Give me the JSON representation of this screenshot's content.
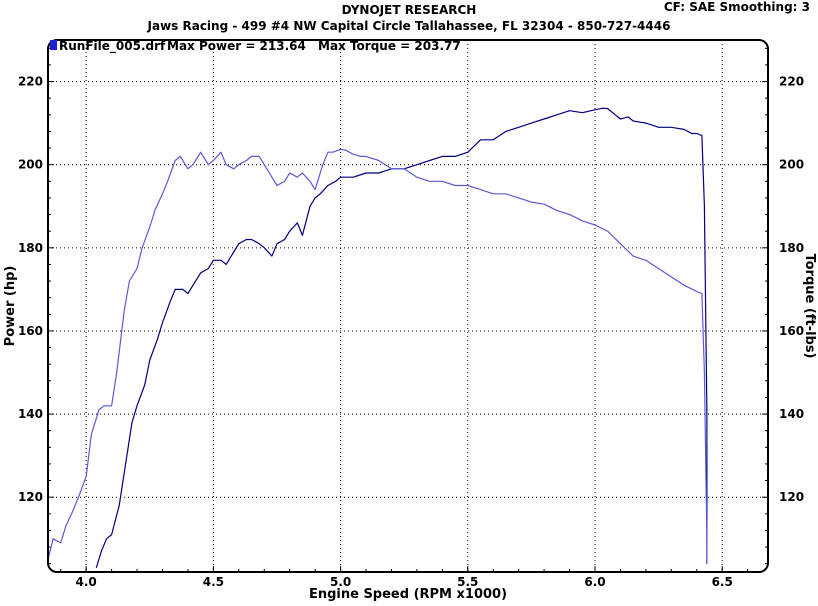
{
  "header": {
    "title": "DYNOJET RESEARCH",
    "subtitle": "Jaws Racing - 499 #4 NW Capital Circle Tallahassee, FL 32304 - 850-727-4446",
    "correction": "CF: SAE  Smoothing: 3"
  },
  "legend": {
    "run": "RunFile_005.drf",
    "max_power_label": "Max Power = 213.64",
    "max_torque_label": "Max Torque = 203.77"
  },
  "chart_data": {
    "type": "line",
    "title": "DYNOJET RESEARCH",
    "xlabel": "Engine Speed (RPM x1000)",
    "ylabel": "Power (hp)",
    "y2label": "Torque (ft-lbs)",
    "xlim": [
      3.85,
      6.68
    ],
    "ylim": [
      102,
      230
    ],
    "y2lim": [
      102,
      230
    ],
    "xticks": [
      4.0,
      4.5,
      5.0,
      5.5,
      6.0,
      6.5
    ],
    "xtick_labels": [
      "4.0",
      "4.5",
      "5.0",
      "5.5",
      "6.0",
      "6.5"
    ],
    "yticks": [
      120,
      140,
      160,
      180,
      200,
      220
    ],
    "y2ticks": [
      120,
      140,
      160,
      180,
      200,
      220
    ],
    "grid": true,
    "legend_position": "top-left",
    "colors": {
      "power": "#000080",
      "torque": "#5a5ad6",
      "frame": "#000000",
      "grid": "#000000",
      "legend_swatch": "#2020d0"
    },
    "series": [
      {
        "name": "Power",
        "axis": "left",
        "color": "#000080",
        "x": [
          4.04,
          4.06,
          4.08,
          4.1,
          4.13,
          4.15,
          4.18,
          4.2,
          4.23,
          4.25,
          4.28,
          4.3,
          4.33,
          4.35,
          4.38,
          4.4,
          4.43,
          4.45,
          4.48,
          4.5,
          4.53,
          4.55,
          4.58,
          4.6,
          4.63,
          4.65,
          4.68,
          4.7,
          4.73,
          4.75,
          4.78,
          4.8,
          4.83,
          4.85,
          4.88,
          4.9,
          4.92,
          4.95,
          4.98,
          5.0,
          5.05,
          5.1,
          5.15,
          5.2,
          5.25,
          5.3,
          5.35,
          5.4,
          5.45,
          5.5,
          5.55,
          5.6,
          5.65,
          5.7,
          5.75,
          5.8,
          5.85,
          5.9,
          5.95,
          6.0,
          6.03,
          6.05,
          6.08,
          6.1,
          6.13,
          6.15,
          6.2,
          6.25,
          6.3,
          6.35,
          6.38,
          6.4,
          6.42,
          6.43,
          6.44,
          6.44
        ],
        "values": [
          103,
          107,
          110,
          111,
          118,
          126,
          138,
          142,
          147,
          153,
          158,
          162,
          167,
          170,
          170,
          169,
          172,
          174,
          175,
          177,
          177,
          176,
          179,
          181,
          182,
          182,
          181,
          180,
          178,
          181,
          182,
          184,
          186,
          183,
          190,
          192,
          193,
          195,
          196,
          197,
          197,
          198,
          198,
          199,
          199,
          200,
          201,
          202,
          202,
          203,
          206,
          206,
          208,
          209,
          210,
          211,
          212,
          213,
          212.5,
          213.2,
          213.6,
          213.5,
          212,
          211,
          211.5,
          210.5,
          210,
          209,
          209,
          208.5,
          207.5,
          207.5,
          207,
          190,
          140,
          104
        ]
      },
      {
        "name": "Torque",
        "axis": "right",
        "color": "#5a5ad6",
        "x": [
          3.85,
          3.87,
          3.9,
          3.92,
          3.95,
          3.97,
          4.0,
          4.02,
          4.05,
          4.07,
          4.1,
          4.12,
          4.15,
          4.17,
          4.2,
          4.22,
          4.25,
          4.27,
          4.3,
          4.32,
          4.35,
          4.37,
          4.4,
          4.42,
          4.45,
          4.48,
          4.5,
          4.53,
          4.55,
          4.58,
          4.6,
          4.63,
          4.65,
          4.68,
          4.7,
          4.73,
          4.75,
          4.78,
          4.8,
          4.83,
          4.85,
          4.88,
          4.9,
          4.93,
          4.95,
          4.97,
          5.0,
          5.02,
          5.05,
          5.08,
          5.1,
          5.15,
          5.2,
          5.25,
          5.3,
          5.35,
          5.4,
          5.45,
          5.5,
          5.55,
          5.6,
          5.65,
          5.7,
          5.75,
          5.8,
          5.85,
          5.9,
          5.95,
          6.0,
          6.05,
          6.1,
          6.15,
          6.2,
          6.25,
          6.3,
          6.35,
          6.4,
          6.42,
          6.43,
          6.44,
          6.44
        ],
        "values": [
          105,
          110,
          109,
          113,
          117,
          120,
          125,
          135,
          141,
          142,
          142,
          150,
          165,
          172,
          175,
          180,
          185,
          189,
          193,
          196,
          201,
          202,
          199,
          200,
          203,
          200,
          201,
          203,
          200,
          199,
          200,
          201,
          202,
          202,
          200,
          197,
          195,
          196,
          198,
          197,
          198,
          196,
          194,
          200,
          203,
          203,
          203.7,
          203.5,
          202.5,
          202,
          202,
          201,
          199,
          199,
          197,
          196,
          196,
          195,
          195,
          194,
          193,
          193,
          192,
          191,
          190.5,
          189,
          188,
          186.5,
          185.5,
          184,
          181,
          178,
          177,
          175,
          173,
          171,
          169.5,
          169,
          150,
          110,
          104
        ]
      }
    ]
  }
}
